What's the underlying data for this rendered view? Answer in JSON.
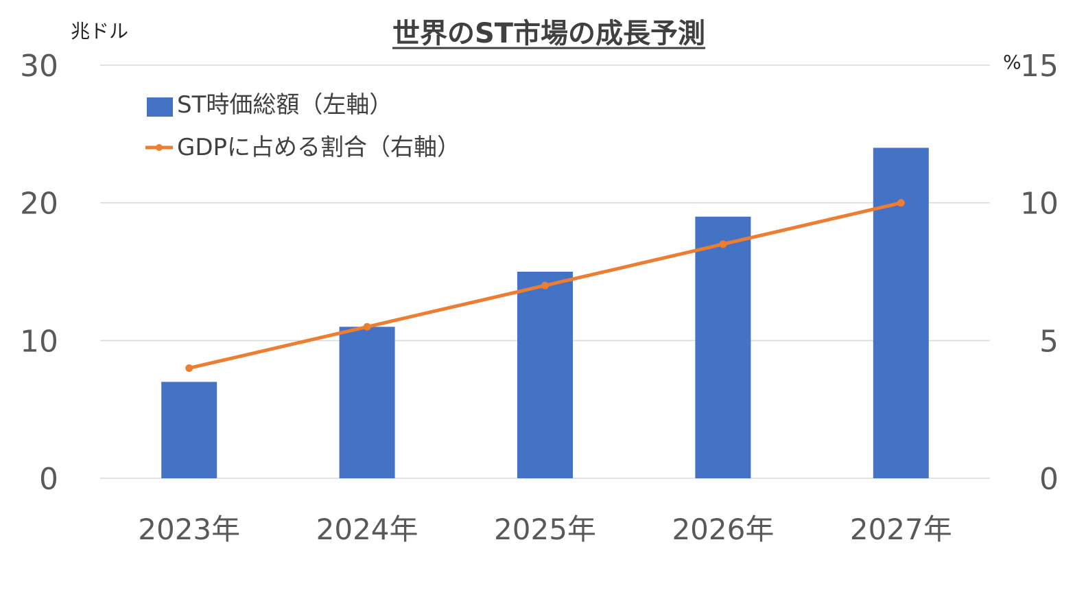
{
  "chart_data": {
    "type": "bar",
    "title": "世界のST市場の成長予測",
    "categories": [
      "2023年",
      "2024年",
      "2025年",
      "2026年",
      "2027年"
    ],
    "left_axis": {
      "unit_label": "兆ドル",
      "ylim": [
        0,
        30
      ],
      "ticks": [
        "0",
        "10",
        "20",
        "30"
      ]
    },
    "right_axis": {
      "unit_label": "%",
      "ylim": [
        0,
        15
      ],
      "ticks": [
        "0",
        "5",
        "10",
        "15"
      ]
    },
    "series": [
      {
        "name": "ST時価総額（左軸）",
        "type": "bar",
        "axis": "left",
        "color": "#4472C4",
        "values": [
          7,
          11,
          15,
          19,
          24
        ]
      },
      {
        "name": "GDPに占める割合（右軸）",
        "type": "line",
        "axis": "right",
        "color": "#ED7D31",
        "values": [
          4.0,
          5.5,
          7.0,
          8.5,
          10.0
        ]
      }
    ],
    "grid": true,
    "legend_position": "top-left"
  }
}
